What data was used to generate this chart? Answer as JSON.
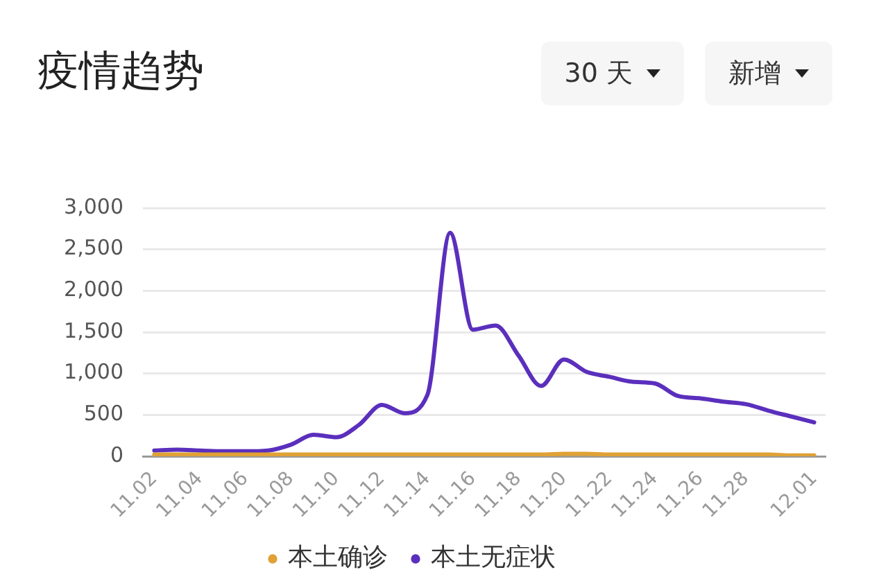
{
  "chart_data": {
    "type": "line",
    "title": "疫情趋势",
    "annotations": [
      "30 天",
      "新增"
    ],
    "categories": [
      "11.02",
      null,
      "11.04",
      null,
      "11.06",
      null,
      "11.08",
      null,
      "11.10",
      null,
      "11.12",
      null,
      "11.14",
      null,
      "11.16",
      null,
      "11.18",
      null,
      "11.20",
      null,
      "11.22",
      null,
      "11.24",
      null,
      "11.26",
      null,
      "11.28",
      null,
      null,
      "12.01"
    ],
    "series": [
      {
        "name": "本土确诊",
        "color": "#e0a135",
        "values": [
          20,
          20,
          20,
          20,
          20,
          20,
          20,
          20,
          20,
          20,
          20,
          20,
          20,
          20,
          20,
          20,
          20,
          20,
          30,
          30,
          20,
          20,
          20,
          20,
          20,
          20,
          20,
          20,
          10,
          10
        ]
      },
      {
        "name": "本土无症状",
        "color": "#5b2fbd",
        "values": [
          70,
          80,
          70,
          60,
          60,
          70,
          140,
          260,
          230,
          380,
          620,
          520,
          740,
          2700,
          1530,
          1580,
          1220,
          850,
          1170,
          1020,
          960,
          900,
          880,
          730,
          700,
          660,
          630,
          550,
          480,
          410
        ]
      }
    ],
    "ylim": [
      0,
      3000
    ],
    "yticks": [
      0,
      500,
      {
        "value": 1000,
        "label": "1,000"
      },
      {
        "value": 1500,
        "label": "1,500"
      },
      {
        "value": 2000,
        "label": "2,000"
      },
      {
        "value": 2500,
        "label": "2,500"
      },
      {
        "value": 3000,
        "label": "3,000"
      }
    ],
    "grid": "y",
    "legend": "bottom",
    "marker": "none"
  }
}
